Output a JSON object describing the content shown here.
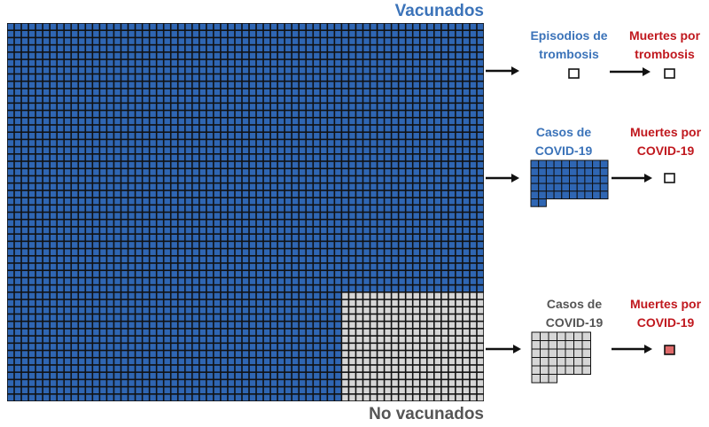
{
  "labels": {
    "vaccinated": "Vacunados",
    "unvaccinated": "No vacunados",
    "thrombosis_episodes": "Episodios de trombosis",
    "thrombosis_deaths": "Muertes por trombosis",
    "vaccinated_covid_cases": "Casos de COVID-19",
    "vaccinated_covid_deaths": "Muertes por COVID-19",
    "unvaccinated_covid_cases": "Casos de COVID-19",
    "unvaccinated_covid_deaths": "Muertes por COVID-19"
  },
  "population": {
    "grid_columns": 67,
    "grid_rows": 52,
    "unvaccinated_block_columns": 20,
    "unvaccinated_block_rows": 15
  },
  "counts": {
    "thrombosis_episodes": 1,
    "thrombosis_deaths": 1,
    "vaccinated_covid_cases": 52,
    "vaccinated_covid_deaths": 1,
    "unvaccinated_covid_cases": 38,
    "unvaccinated_covid_deaths": 1
  },
  "colors": {
    "vaccinated": "#2f66b3",
    "unvaccinated": "#d6d6d6",
    "death_highlight": "#e06a6a",
    "outline": "#111111",
    "blue_text": "#3b73b9",
    "red_text": "#c0181e",
    "gray_text": "#555555"
  }
}
